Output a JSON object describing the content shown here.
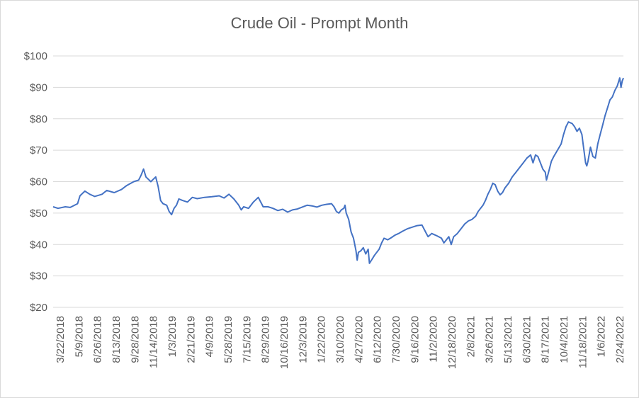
{
  "chart_data": {
    "type": "line",
    "title": "Crude Oil - Prompt Month",
    "xlabel": "",
    "ylabel": "",
    "y_ticks": [
      "$20",
      "$30",
      "$40",
      "$50",
      "$60",
      "$70",
      "$80",
      "$90",
      "$100"
    ],
    "x_ticks": [
      "3/22/2018",
      "5/9/2018",
      "6/26/2018",
      "8/13/2018",
      "9/28/2018",
      "11/14/2018",
      "1/3/2019",
      "2/21/2019",
      "4/9/2019",
      "5/28/2019",
      "7/15/2019",
      "8/29/2019",
      "10/16/2019",
      "12/3/2019",
      "1/22/2020",
      "3/10/2020",
      "4/27/2020",
      "6/12/2020",
      "7/30/2020",
      "9/16/2020",
      "11/2/2020",
      "12/18/2020",
      "2/8/2021",
      "3/26/2021",
      "5/13/2021",
      "6/30/2021",
      "8/17/2021",
      "10/4/2021",
      "11/18/2021",
      "1/6/2022",
      "2/24/2022"
    ],
    "ylim": [
      20,
      100
    ],
    "grid": true,
    "legend": "none",
    "line_color": "#4472c4",
    "series": [
      {
        "values": [
          [
            0,
            52
          ],
          [
            4,
            51.5
          ],
          [
            10,
            52
          ],
          [
            14,
            51.8
          ],
          [
            20,
            53
          ],
          [
            22,
            55.5
          ],
          [
            26,
            57
          ],
          [
            30,
            56
          ],
          [
            34,
            55.3
          ],
          [
            40,
            56
          ],
          [
            44,
            57.2
          ],
          [
            50,
            56.5
          ],
          [
            56,
            57.5
          ],
          [
            60,
            58.7
          ],
          [
            66,
            60
          ],
          [
            70,
            60.5
          ],
          [
            72,
            62
          ],
          [
            74,
            64
          ],
          [
            76,
            61.5
          ],
          [
            80,
            60
          ],
          [
            84,
            61.5
          ],
          [
            86,
            58.5
          ],
          [
            88,
            54
          ],
          [
            90,
            53
          ],
          [
            93,
            52.5
          ],
          [
            95,
            50.5
          ],
          [
            97,
            49.5
          ],
          [
            99,
            51.5
          ],
          [
            101,
            52.5
          ],
          [
            103,
            54.5
          ],
          [
            106,
            54
          ],
          [
            110,
            53.5
          ],
          [
            114,
            55
          ],
          [
            118,
            54.6
          ],
          [
            124,
            55
          ],
          [
            130,
            55.2
          ],
          [
            136,
            55.5
          ],
          [
            140,
            54.8
          ],
          [
            144,
            56
          ],
          [
            148,
            54.5
          ],
          [
            152,
            52.5
          ],
          [
            154,
            51
          ],
          [
            156,
            52
          ],
          [
            160,
            51.5
          ],
          [
            164,
            53.5
          ],
          [
            168,
            55
          ],
          [
            172,
            52
          ],
          [
            176,
            52
          ],
          [
            180,
            51.5
          ],
          [
            184,
            50.8
          ],
          [
            188,
            51.2
          ],
          [
            192,
            50.3
          ],
          [
            196,
            51
          ],
          [
            200,
            51.3
          ],
          [
            204,
            51.9
          ],
          [
            208,
            52.5
          ],
          [
            212,
            52.3
          ],
          [
            216,
            51.9
          ],
          [
            220,
            52.5
          ],
          [
            224,
            52.8
          ],
          [
            228,
            53
          ],
          [
            230,
            52
          ],
          [
            232,
            50.5
          ],
          [
            234,
            50
          ],
          [
            236,
            51
          ],
          [
            238,
            51.5
          ],
          [
            239,
            52.5
          ],
          [
            240,
            50
          ],
          [
            242,
            48
          ],
          [
            244,
            44
          ],
          [
            246,
            42
          ],
          [
            248,
            38
          ],
          [
            249,
            35
          ],
          [
            250,
            37.5
          ],
          [
            252,
            38
          ],
          [
            254,
            39
          ],
          [
            256,
            37
          ],
          [
            258,
            38.5
          ],
          [
            259,
            34
          ],
          [
            261,
            35.2
          ],
          [
            263,
            36.5
          ],
          [
            265,
            37.5
          ],
          [
            267,
            38.5
          ],
          [
            269,
            40.5
          ],
          [
            271,
            42
          ],
          [
            274,
            41.5
          ],
          [
            277,
            42.2
          ],
          [
            280,
            43
          ],
          [
            283,
            43.5
          ],
          [
            286,
            44.2
          ],
          [
            290,
            45
          ],
          [
            294,
            45.5
          ],
          [
            298,
            46
          ],
          [
            302,
            46.2
          ],
          [
            305,
            44
          ],
          [
            307,
            42.5
          ],
          [
            310,
            43.5
          ],
          [
            314,
            42.8
          ],
          [
            318,
            42
          ],
          [
            320,
            40.5
          ],
          [
            322,
            41.5
          ],
          [
            324,
            42.5
          ],
          [
            326,
            40
          ],
          [
            328,
            42.5
          ],
          [
            331,
            43.5
          ],
          [
            334,
            45
          ],
          [
            337,
            46.5
          ],
          [
            340,
            47.5
          ],
          [
            343,
            48
          ],
          [
            346,
            49
          ],
          [
            348,
            50.5
          ],
          [
            350,
            51.5
          ],
          [
            352,
            52.5
          ],
          [
            354,
            54
          ],
          [
            356,
            56
          ],
          [
            358,
            57.5
          ],
          [
            360,
            59.5
          ],
          [
            362,
            59
          ],
          [
            364,
            57
          ],
          [
            366,
            55.8
          ],
          [
            368,
            56.5
          ],
          [
            370,
            58
          ],
          [
            373,
            59.5
          ],
          [
            376,
            61.5
          ],
          [
            379,
            63
          ],
          [
            382,
            64.5
          ],
          [
            385,
            66
          ],
          [
            388,
            67.5
          ],
          [
            391,
            68.5
          ],
          [
            393,
            66
          ],
          [
            395,
            68.5
          ],
          [
            397,
            68
          ],
          [
            399,
            66
          ],
          [
            401,
            64
          ],
          [
            403,
            63
          ],
          [
            404,
            60.5
          ],
          [
            406,
            63.5
          ],
          [
            408,
            66.5
          ],
          [
            410,
            68
          ],
          [
            413,
            70
          ],
          [
            416,
            72
          ],
          [
            418,
            75
          ],
          [
            420,
            77.5
          ],
          [
            422,
            79
          ],
          [
            425,
            78.5
          ],
          [
            427,
            77.5
          ],
          [
            429,
            76
          ],
          [
            431,
            77
          ],
          [
            433,
            75
          ],
          [
            434,
            72
          ],
          [
            436,
            66
          ],
          [
            437,
            65
          ],
          [
            438,
            66.5
          ],
          [
            440,
            71
          ],
          [
            442,
            68
          ],
          [
            444,
            67.5
          ],
          [
            446,
            72
          ],
          [
            448,
            75
          ],
          [
            450,
            78
          ],
          [
            452,
            81
          ],
          [
            454,
            83.5
          ],
          [
            456,
            86
          ],
          [
            458,
            87
          ],
          [
            460,
            89
          ],
          [
            462,
            90.5
          ],
          [
            464,
            93
          ],
          [
            465,
            90
          ],
          [
            466,
            92
          ],
          [
            467,
            93
          ]
        ]
      }
    ],
    "x_index_max": 467
  }
}
